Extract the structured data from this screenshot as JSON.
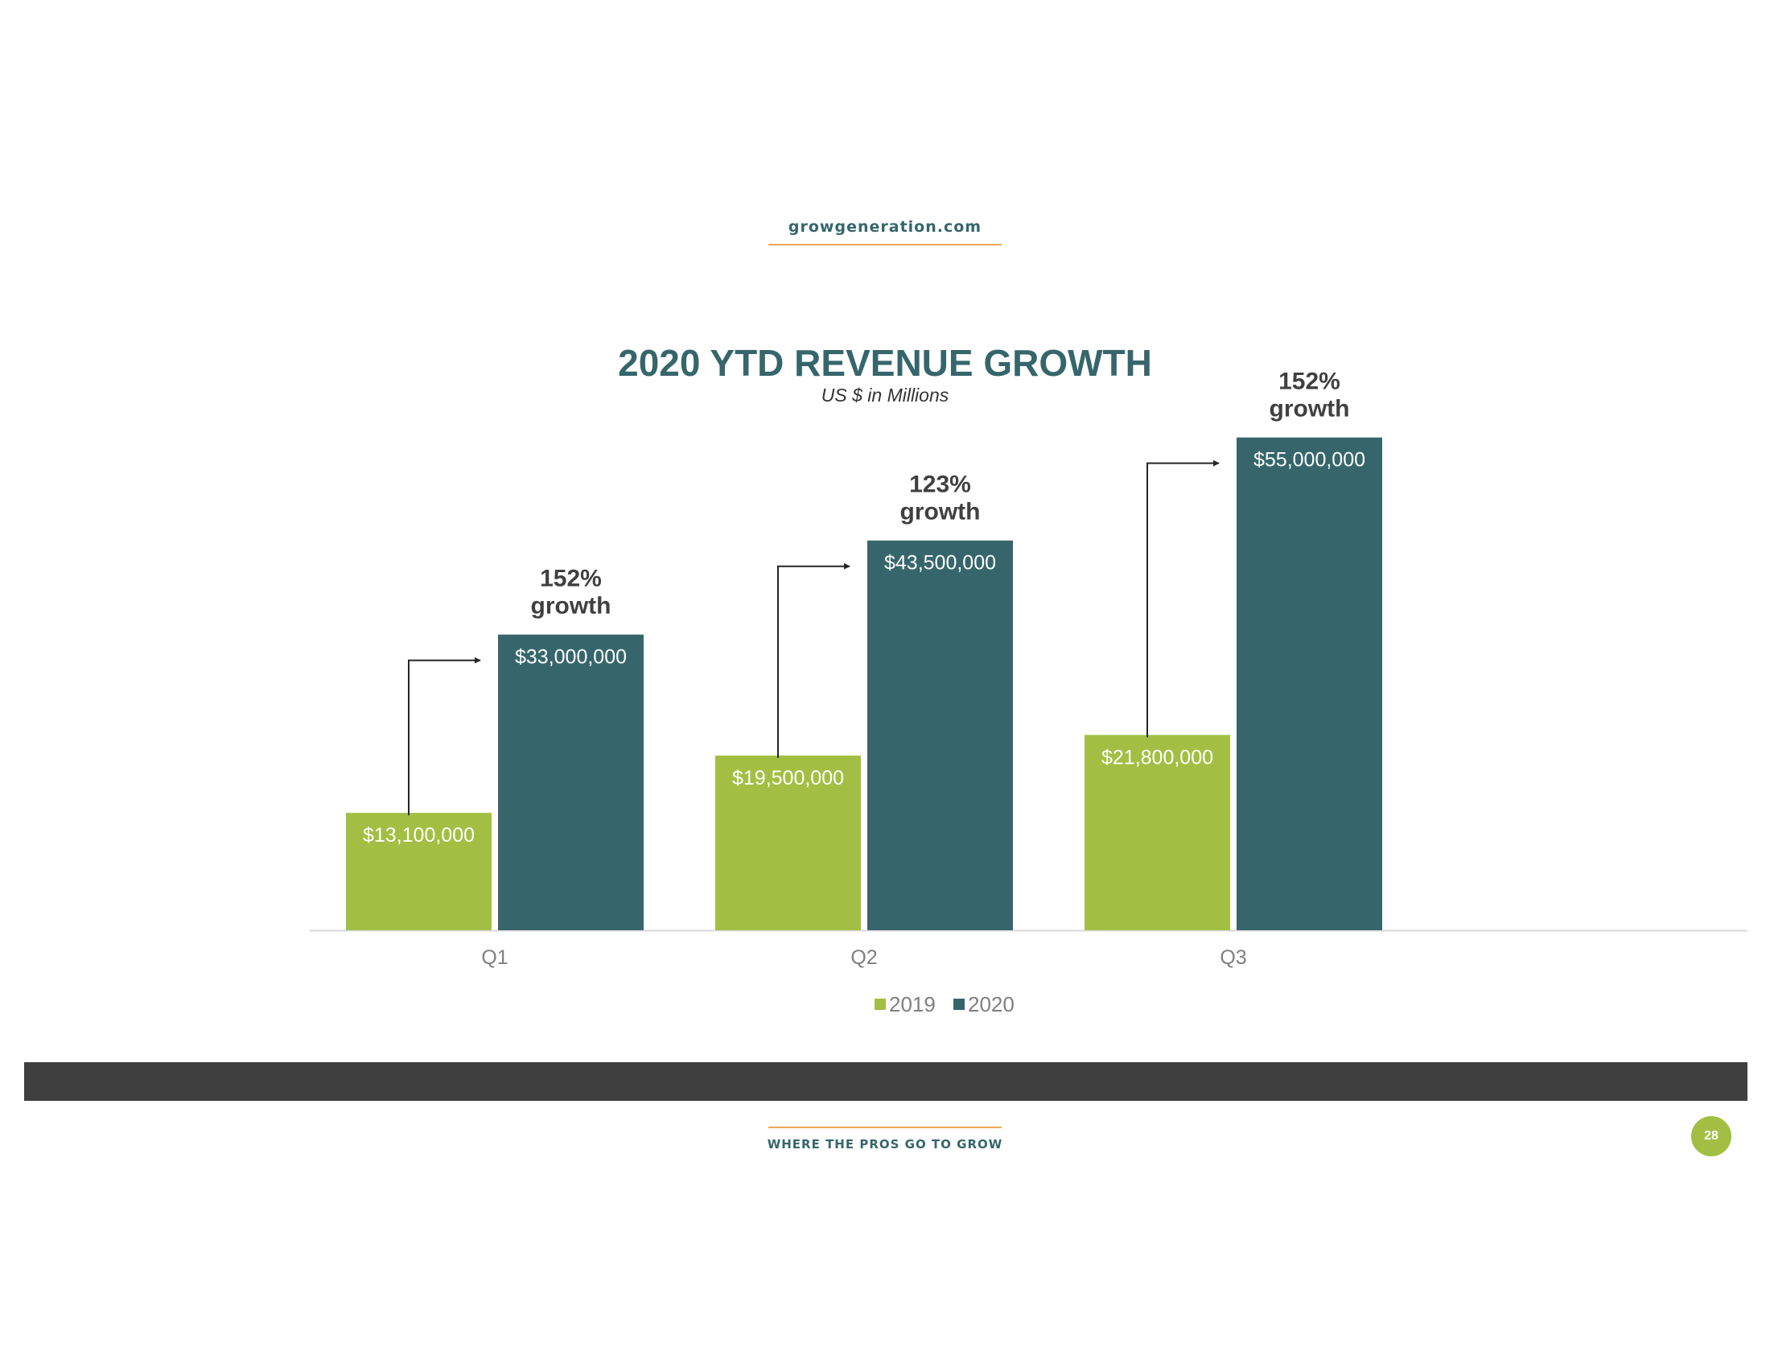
{
  "header": {
    "site": "growgeneration.com"
  },
  "slide": {
    "title": "2020 YTD REVENUE GROWTH",
    "subtitle": "US $ in Millions"
  },
  "footer": {
    "tagline": "WHERE THE PROS GO TO GROW",
    "page_number": "28"
  },
  "colors": {
    "teal": "#36666b",
    "green": "#a2bf43",
    "orange": "#f0a855",
    "band": "#3f3f3f",
    "axis_text": "#7f7f7f",
    "annotation_text": "#404040",
    "gridline": "#d9d9d9"
  },
  "chart_data": {
    "type": "bar",
    "title": "2020 YTD REVENUE GROWTH",
    "subtitle": "US $ in Millions",
    "categories": [
      "Q1",
      "Q2",
      "Q3"
    ],
    "series": [
      {
        "name": "2019",
        "color": "#a2bf43",
        "values": [
          13100000,
          19500000,
          21800000
        ],
        "labels": [
          "$13,100,000",
          "$19,500,000",
          "$21,800,000"
        ]
      },
      {
        "name": "2020",
        "color": "#36666b",
        "values": [
          33000000,
          43500000,
          55000000
        ],
        "labels": [
          "$33,000,000",
          "$43,500,000",
          "$55,000,000"
        ]
      }
    ],
    "annotations": [
      {
        "category": "Q1",
        "percent": "152%",
        "word": "growth"
      },
      {
        "category": "Q2",
        "percent": "123%",
        "word": "growth"
      },
      {
        "category": "Q3",
        "percent": "152%",
        "word": "growth"
      }
    ],
    "ylim": [
      0,
      60000000
    ],
    "grid": false,
    "legend": "bottom-center"
  }
}
